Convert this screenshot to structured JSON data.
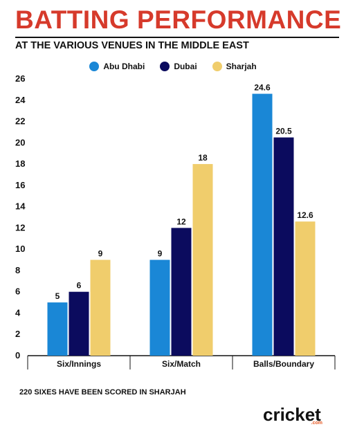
{
  "header": {
    "title": "BATTING PERFORMANCE",
    "subtitle": "AT THE VARIOUS VENUES IN THE MIDDLE EAST"
  },
  "colors": {
    "title": "#d63a2b",
    "abu_dhabi": "#1a87d6",
    "dubai": "#0b0b5e",
    "sharjah": "#f0cd6c"
  },
  "chart_data": {
    "type": "bar",
    "categories": [
      "Six/Innings",
      "Six/Match",
      "Balls/Boundary"
    ],
    "series": [
      {
        "name": "Abu Dhabi",
        "values": [
          5,
          9,
          24.6
        ],
        "color": "#1a87d6"
      },
      {
        "name": "Dubai",
        "values": [
          6,
          12,
          20.5
        ],
        "color": "#0b0b5e"
      },
      {
        "name": "Sharjah",
        "values": [
          9,
          18,
          12.6
        ],
        "color": "#f0cd6c"
      }
    ],
    "value_labels": [
      [
        "5",
        "9",
        "24.6"
      ],
      [
        "6",
        "12",
        "20.5"
      ],
      [
        "9",
        "18",
        "12.6"
      ]
    ],
    "yticks": [
      0,
      2,
      4,
      6,
      8,
      10,
      12,
      14,
      16,
      18,
      20,
      22,
      24,
      26
    ],
    "ylim": [
      0,
      26
    ],
    "grid": false,
    "legend_position": "top-center"
  },
  "footnote": "220 SIXES HAVE BEEN SCORED IN SHARJAH",
  "logo": {
    "text": "cricket",
    "sub": ".com"
  }
}
